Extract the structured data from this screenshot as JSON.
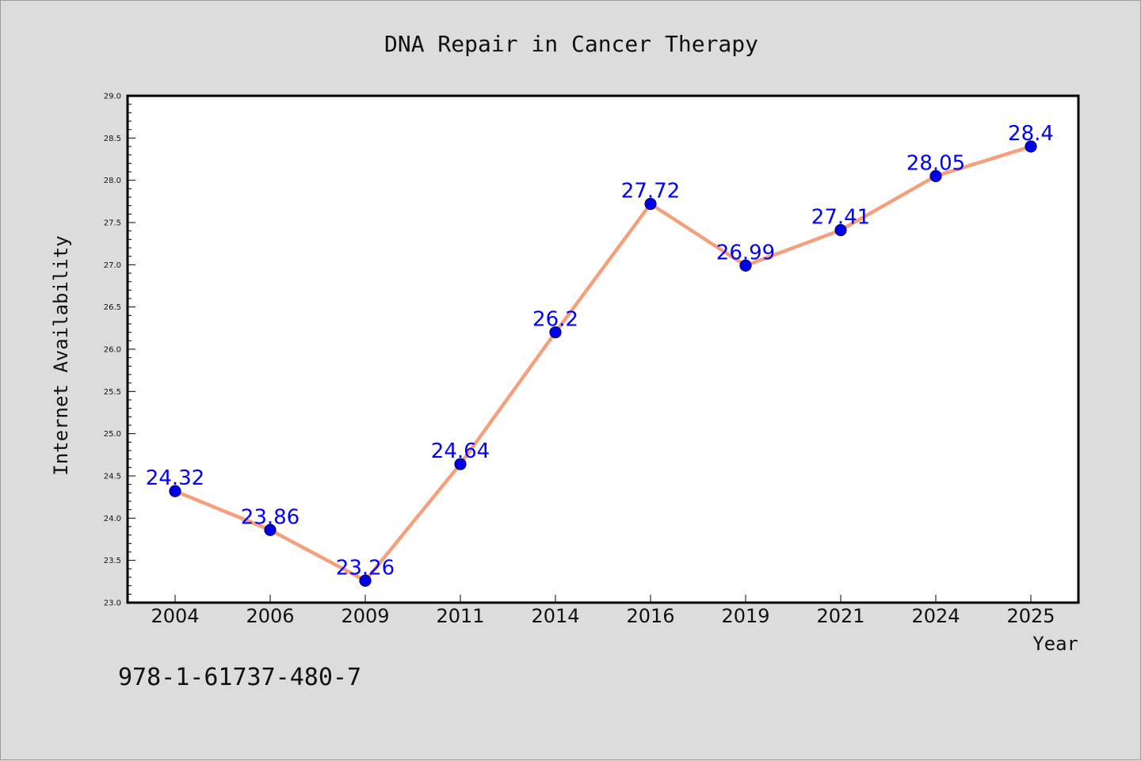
{
  "chart_data": {
    "type": "line",
    "title": "DNA Repair in Cancer Therapy",
    "xlabel": "Year",
    "ylabel": "Internet Availability",
    "categories": [
      "2004",
      "2006",
      "2009",
      "2011",
      "2014",
      "2016",
      "2019",
      "2021",
      "2024",
      "2025"
    ],
    "values": [
      24.32,
      23.86,
      23.26,
      24.64,
      26.2,
      27.72,
      26.99,
      27.41,
      28.05,
      28.4
    ],
    "value_labels": [
      "24.32",
      "23.86",
      "23.26",
      "24.64",
      "26.2",
      "27.72",
      "26.99",
      "27.41",
      "28.05",
      "28.4"
    ],
    "ylim": [
      23.0,
      29.0
    ],
    "yticks": [
      23.0,
      23.5,
      24.0,
      24.5,
      25.0,
      25.5,
      26.0,
      26.5,
      27.0,
      27.5,
      28.0,
      28.5,
      29.0
    ],
    "ytick_labels": [
      "23.0",
      "23.5",
      "24.0",
      "24.5",
      "25.0",
      "25.5",
      "26.0",
      "26.5",
      "27.0",
      "27.5",
      "28.0",
      "28.5",
      "29.0"
    ],
    "grid": false,
    "legend": "none",
    "colors": {
      "line": "#f4a07c",
      "marker_fill": "#0000ee",
      "marker_edge": "#000066",
      "data_label": "#0000ff",
      "background": "#dcdcdc",
      "plot_background": "#ffffff"
    }
  },
  "footer": {
    "text": "978-1-61737-480-7"
  }
}
